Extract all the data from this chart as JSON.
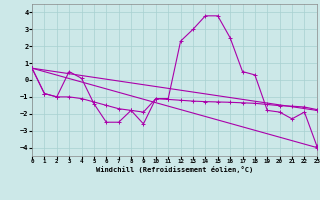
{
  "xlabel": "Windchill (Refroidissement éolien,°C)",
  "xlim": [
    0,
    23
  ],
  "ylim": [
    -4.5,
    4.5
  ],
  "yticks": [
    -4,
    -3,
    -2,
    -1,
    0,
    1,
    2,
    3,
    4
  ],
  "xticks": [
    0,
    1,
    2,
    3,
    4,
    5,
    6,
    7,
    8,
    9,
    10,
    11,
    12,
    13,
    14,
    15,
    16,
    17,
    18,
    19,
    20,
    21,
    22,
    23
  ],
  "background_color": "#cce8e8",
  "grid_color": "#a8d0d0",
  "line_color": "#aa00aa",
  "lines": [
    {
      "x": [
        0,
        1,
        2,
        3,
        4,
        5,
        6,
        7,
        8,
        9,
        10,
        11,
        12,
        13,
        14,
        15,
        16,
        17,
        18,
        19,
        20,
        21,
        22,
        23
      ],
      "y": [
        0.7,
        -0.8,
        -1.0,
        0.5,
        0.1,
        -1.4,
        -2.5,
        -2.5,
        -1.8,
        -2.6,
        -1.1,
        -1.1,
        2.3,
        3.0,
        3.8,
        3.8,
        2.5,
        0.5,
        0.3,
        -1.8,
        -1.9,
        -2.3,
        -1.9,
        -3.9
      ]
    },
    {
      "x": [
        0,
        1,
        2,
        3,
        4,
        5,
        6,
        7,
        8,
        9,
        10,
        11,
        12,
        13,
        14,
        15,
        16,
        17,
        18,
        19,
        20,
        21,
        22,
        23
      ],
      "y": [
        0.7,
        -0.8,
        -1.0,
        -1.0,
        -1.1,
        -1.3,
        -1.5,
        -1.7,
        -1.8,
        -1.9,
        -1.1,
        -1.15,
        -1.2,
        -1.25,
        -1.28,
        -1.3,
        -1.32,
        -1.35,
        -1.38,
        -1.45,
        -1.52,
        -1.55,
        -1.6,
        -1.75
      ]
    },
    {
      "x": [
        0,
        23
      ],
      "y": [
        0.7,
        -1.8
      ]
    },
    {
      "x": [
        0,
        23
      ],
      "y": [
        0.7,
        -4.0
      ]
    }
  ],
  "figsize": [
    3.2,
    2.0
  ],
  "dpi": 100
}
